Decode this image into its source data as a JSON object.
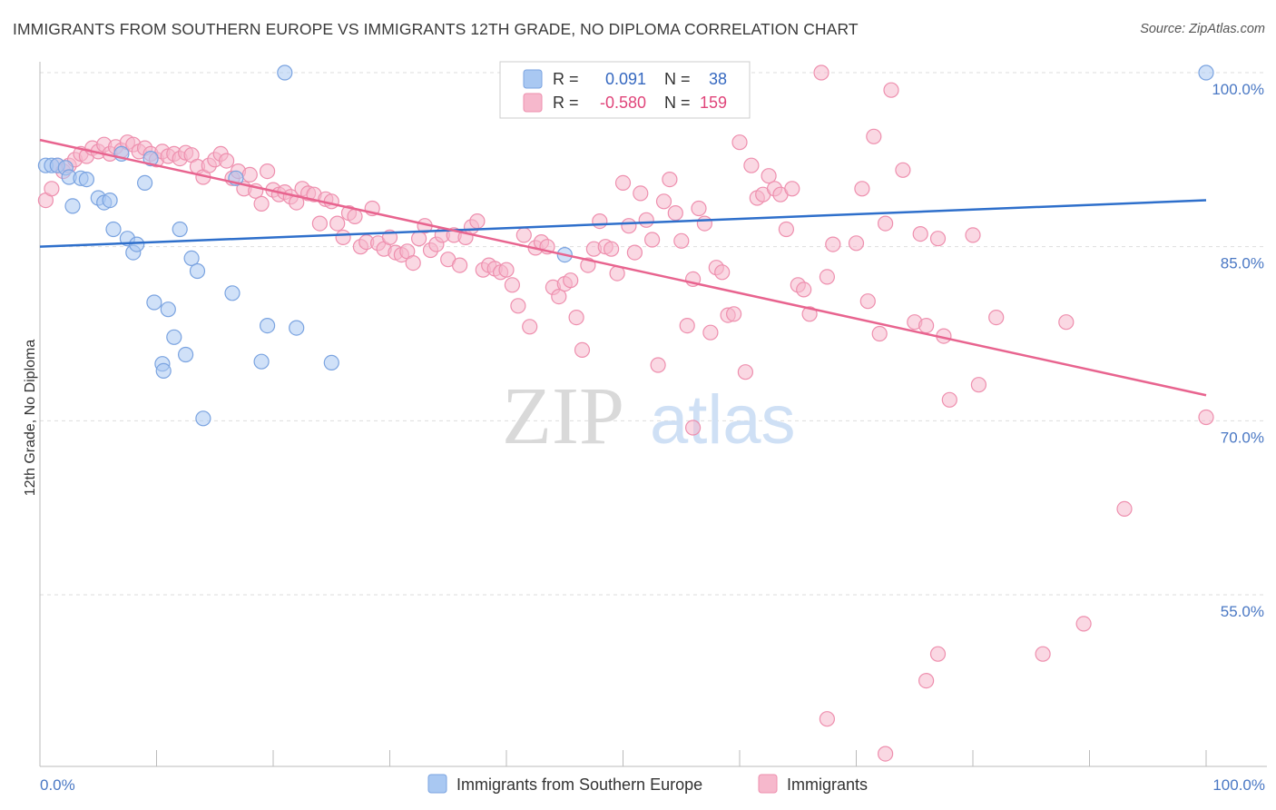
{
  "header": {
    "title": "IMMIGRANTS FROM SOUTHERN EUROPE VS IMMIGRANTS 12TH GRADE, NO DIPLOMA CORRELATION CHART",
    "source": "Source: ZipAtlas.com"
  },
  "watermark": {
    "zip": "ZIP",
    "atlas": "atlas"
  },
  "legend": {
    "r_label": "R =",
    "n_label": "N =",
    "series": [
      {
        "r": "0.091",
        "n": "38"
      },
      {
        "r": "-0.580",
        "n": "159"
      }
    ]
  },
  "colors": {
    "blue_fill": "#a9c8f2",
    "blue_stroke": "#7aa3e0",
    "blue_line": "#2e6fcb",
    "pink_fill": "#f6b8cc",
    "pink_stroke": "#ee8fae",
    "pink_line": "#e8648f",
    "tick_text": "#4a78c4",
    "grid": "#dddddd"
  },
  "chart_data": {
    "type": "scatter",
    "xlabel": "",
    "ylabel": "12th Grade, No Diploma",
    "xlim": [
      0,
      100
    ],
    "ylim": [
      40,
      101.5
    ],
    "x_tick_labels": [
      "0.0%",
      "100.0%"
    ],
    "y_ticks": [
      {
        "value": 100,
        "label": "100.0%"
      },
      {
        "value": 85,
        "label": "85.0%"
      },
      {
        "value": 70,
        "label": "70.0%"
      },
      {
        "value": 55,
        "label": "55.0%"
      }
    ],
    "grid": true,
    "series": [
      {
        "name": "Immigrants from Southern Europe",
        "trend": [
          [
            0,
            85.0
          ],
          [
            100,
            89.0
          ]
        ],
        "points": [
          [
            0.5,
            92.0
          ],
          [
            1.0,
            92.0
          ],
          [
            1.5,
            92.0
          ],
          [
            2.2,
            91.8
          ],
          [
            2.5,
            91.0
          ],
          [
            2.8,
            88.5
          ],
          [
            3.5,
            90.9
          ],
          [
            4.0,
            90.8
          ],
          [
            5.0,
            89.2
          ],
          [
            5.5,
            88.8
          ],
          [
            6.0,
            89.0
          ],
          [
            6.3,
            86.5
          ],
          [
            7.0,
            93.0
          ],
          [
            7.5,
            85.7
          ],
          [
            8.0,
            84.5
          ],
          [
            8.3,
            85.2
          ],
          [
            9.0,
            90.5
          ],
          [
            9.5,
            92.6
          ],
          [
            9.8,
            80.2
          ],
          [
            10.5,
            74.9
          ],
          [
            10.6,
            74.3
          ],
          [
            11.0,
            79.6
          ],
          [
            11.5,
            77.2
          ],
          [
            12.0,
            86.5
          ],
          [
            12.5,
            75.7
          ],
          [
            13.0,
            84.0
          ],
          [
            13.5,
            82.9
          ],
          [
            14.0,
            70.2
          ],
          [
            16.5,
            81.0
          ],
          [
            16.8,
            90.9
          ],
          [
            19.0,
            75.1
          ],
          [
            19.5,
            78.2
          ],
          [
            21.0,
            100.0
          ],
          [
            22.0,
            78.0
          ],
          [
            25.0,
            75.0
          ],
          [
            45.0,
            84.3
          ],
          [
            100.0,
            100.0
          ]
        ]
      },
      {
        "name": "Immigrants",
        "trend": [
          [
            0,
            94.2
          ],
          [
            100,
            72.2
          ]
        ],
        "points": [
          [
            0.5,
            89.0
          ],
          [
            1.0,
            90.0
          ],
          [
            1.5,
            92.0
          ],
          [
            2.0,
            91.5
          ],
          [
            2.5,
            92.0
          ],
          [
            3.0,
            92.5
          ],
          [
            3.5,
            93.0
          ],
          [
            4.0,
            92.8
          ],
          [
            4.5,
            93.5
          ],
          [
            5.0,
            93.2
          ],
          [
            5.5,
            93.8
          ],
          [
            6.0,
            93.0
          ],
          [
            6.5,
            93.6
          ],
          [
            7.0,
            93.3
          ],
          [
            7.5,
            94.0
          ],
          [
            8.0,
            93.8
          ],
          [
            8.5,
            93.2
          ],
          [
            9.0,
            93.5
          ],
          [
            9.5,
            93.0
          ],
          [
            10.0,
            92.5
          ],
          [
            10.5,
            93.2
          ],
          [
            11.0,
            92.8
          ],
          [
            11.5,
            93.0
          ],
          [
            12.0,
            92.6
          ],
          [
            12.5,
            93.1
          ],
          [
            13.0,
            92.9
          ],
          [
            13.5,
            91.9
          ],
          [
            14.0,
            91.0
          ],
          [
            14.5,
            92.0
          ],
          [
            15.0,
            92.5
          ],
          [
            15.5,
            93.0
          ],
          [
            16.0,
            92.4
          ],
          [
            16.5,
            90.9
          ],
          [
            17.0,
            91.5
          ],
          [
            17.5,
            90.0
          ],
          [
            18.0,
            91.2
          ],
          [
            18.5,
            89.8
          ],
          [
            19.0,
            88.7
          ],
          [
            19.5,
            91.5
          ],
          [
            20.0,
            89.9
          ],
          [
            20.5,
            89.5
          ],
          [
            21.0,
            89.7
          ],
          [
            21.5,
            89.3
          ],
          [
            22.0,
            88.8
          ],
          [
            22.5,
            90.0
          ],
          [
            23.0,
            89.6
          ],
          [
            23.5,
            89.5
          ],
          [
            24.0,
            87.0
          ],
          [
            24.5,
            89.1
          ],
          [
            25.0,
            88.9
          ],
          [
            25.5,
            87.0
          ],
          [
            26.0,
            85.8
          ],
          [
            26.5,
            87.9
          ],
          [
            27.0,
            87.6
          ],
          [
            27.5,
            85.0
          ],
          [
            28.0,
            85.4
          ],
          [
            28.5,
            88.3
          ],
          [
            29.0,
            85.3
          ],
          [
            29.5,
            84.8
          ],
          [
            30.0,
            85.8
          ],
          [
            30.5,
            84.5
          ],
          [
            31.0,
            84.3
          ],
          [
            31.5,
            84.6
          ],
          [
            32.0,
            83.6
          ],
          [
            32.5,
            85.7
          ],
          [
            33.0,
            86.8
          ],
          [
            33.5,
            84.7
          ],
          [
            34.0,
            85.2
          ],
          [
            34.5,
            86.0
          ],
          [
            35.0,
            83.9
          ],
          [
            35.5,
            86.0
          ],
          [
            36.0,
            83.4
          ],
          [
            36.5,
            85.8
          ],
          [
            37.0,
            86.7
          ],
          [
            37.5,
            87.2
          ],
          [
            38.0,
            83.0
          ],
          [
            38.5,
            83.4
          ],
          [
            39.0,
            83.1
          ],
          [
            39.5,
            82.8
          ],
          [
            40.0,
            83.0
          ],
          [
            40.5,
            81.7
          ],
          [
            41.0,
            79.9
          ],
          [
            41.5,
            86.0
          ],
          [
            42.0,
            78.1
          ],
          [
            42.5,
            84.9
          ],
          [
            43.0,
            85.4
          ],
          [
            43.5,
            85.0
          ],
          [
            44.0,
            81.5
          ],
          [
            44.5,
            80.7
          ],
          [
            45.0,
            81.8
          ],
          [
            45.5,
            82.1
          ],
          [
            46.0,
            78.9
          ],
          [
            46.5,
            76.1
          ],
          [
            47.0,
            83.4
          ],
          [
            47.5,
            84.8
          ],
          [
            48.0,
            87.2
          ],
          [
            48.5,
            85.0
          ],
          [
            49.0,
            84.8
          ],
          [
            49.5,
            82.7
          ],
          [
            50.0,
            90.5
          ],
          [
            50.5,
            86.8
          ],
          [
            51.0,
            84.5
          ],
          [
            51.5,
            89.6
          ],
          [
            52.0,
            87.3
          ],
          [
            52.5,
            85.6
          ],
          [
            53.0,
            74.8
          ],
          [
            53.5,
            88.9
          ],
          [
            54.0,
            90.8
          ],
          [
            54.5,
            87.9
          ],
          [
            55.0,
            85.5
          ],
          [
            55.5,
            78.2
          ],
          [
            56.0,
            82.2
          ],
          [
            56.5,
            88.3
          ],
          [
            57.0,
            87.0
          ],
          [
            57.5,
            77.6
          ],
          [
            58.0,
            83.2
          ],
          [
            58.5,
            82.8
          ],
          [
            59.0,
            79.1
          ],
          [
            59.5,
            79.2
          ],
          [
            60.0,
            94.0
          ],
          [
            60.5,
            74.2
          ],
          [
            61.0,
            92.0
          ],
          [
            61.5,
            89.2
          ],
          [
            62.0,
            89.5
          ],
          [
            62.5,
            91.1
          ],
          [
            63.0,
            90.0
          ],
          [
            63.5,
            89.5
          ],
          [
            64.0,
            86.5
          ],
          [
            64.5,
            90.0
          ],
          [
            65.0,
            81.7
          ],
          [
            65.5,
            81.3
          ],
          [
            66.0,
            79.2
          ],
          [
            67.0,
            100.0
          ],
          [
            67.5,
            82.4
          ],
          [
            68.0,
            85.2
          ],
          [
            70.0,
            85.3
          ],
          [
            70.5,
            90.0
          ],
          [
            71.0,
            80.3
          ],
          [
            71.5,
            94.5
          ],
          [
            72.0,
            77.5
          ],
          [
            72.5,
            87.0
          ],
          [
            73.0,
            98.5
          ],
          [
            74.0,
            91.6
          ],
          [
            75.0,
            78.5
          ],
          [
            75.5,
            86.1
          ],
          [
            76.0,
            78.2
          ],
          [
            77.0,
            85.7
          ],
          [
            77.5,
            77.3
          ],
          [
            78.0,
            71.8
          ],
          [
            80.0,
            86.0
          ],
          [
            80.5,
            73.1
          ],
          [
            82.0,
            78.9
          ],
          [
            86.0,
            49.9
          ],
          [
            88.0,
            78.5
          ],
          [
            89.5,
            52.5
          ],
          [
            93.0,
            62.4
          ],
          [
            100.0,
            70.3
          ],
          [
            67.5,
            44.3
          ],
          [
            72.5,
            41.3
          ],
          [
            76.0,
            47.6
          ],
          [
            77.0,
            49.9
          ],
          [
            56.0,
            69.4
          ]
        ]
      }
    ]
  },
  "bottom_legend": [
    "Immigrants from Southern Europe",
    "Immigrants"
  ]
}
